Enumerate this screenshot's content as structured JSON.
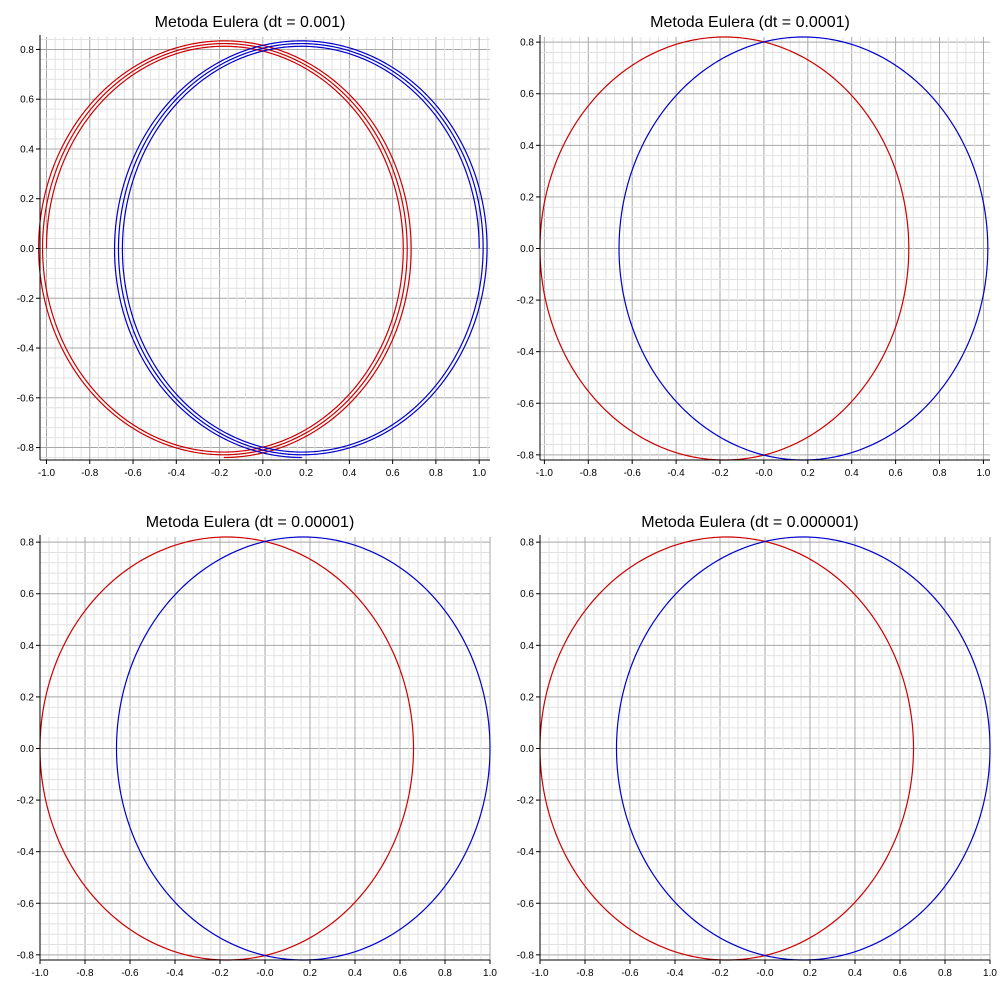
{
  "colors": {
    "series_a": "#cc0000",
    "series_b": "#0000cc",
    "grid_major": "#a8a8a8",
    "grid_minor": "#e2e2e2",
    "axis": "#000000"
  },
  "chart_data": [
    {
      "type": "line",
      "title": "Metoda Eulera (dt = 0.001)",
      "xlabel": "",
      "ylabel": "",
      "xlim": [
        -1.03,
        1.05
      ],
      "ylim": [
        -0.85,
        0.85
      ],
      "xticks": [
        "-1.0",
        "-0.8",
        "-0.6",
        "-0.4",
        "-0.2",
        "-0.0",
        "0.2",
        "0.4",
        "0.6",
        "0.8",
        "1.0"
      ],
      "yticks": [
        "-0.8",
        "-0.6",
        "-0.4",
        "-0.2",
        "0.0",
        "0.2",
        "0.4",
        "0.6",
        "0.8"
      ],
      "grid": true,
      "series": [
        {
          "color": "#cc0000",
          "shape": "spiral",
          "cx": -0.18,
          "rx_start": 0.82,
          "rx_end": 0.87,
          "ry_start": 0.81,
          "ry_end": 0.84,
          "turns": 2.75
        },
        {
          "color": "#0000cc",
          "shape": "spiral",
          "cx": 0.18,
          "rx_start": 0.82,
          "rx_end": 0.87,
          "ry_start": 0.81,
          "ry_end": 0.84,
          "turns": 2.75
        }
      ]
    },
    {
      "type": "line",
      "title": "Metoda Eulera (dt = 0.0001)",
      "xlabel": "",
      "ylabel": "",
      "xlim": [
        -1.02,
        1.03
      ],
      "ylim": [
        -0.82,
        0.82
      ],
      "xticks": [
        "-1.0",
        "-0.8",
        "-0.6",
        "-0.4",
        "-0.2",
        "-0.0",
        "0.2",
        "0.4",
        "0.6",
        "0.8",
        "1.0"
      ],
      "yticks": [
        "-0.8",
        "-0.6",
        "-0.4",
        "-0.2",
        "0.0",
        "0.2",
        "0.4",
        "0.6",
        "0.8"
      ],
      "grid": true,
      "series": [
        {
          "color": "#cc0000",
          "shape": "ellipse",
          "cx": -0.18,
          "rx": 0.84,
          "ry": 0.82
        },
        {
          "color": "#0000cc",
          "shape": "ellipse",
          "cx": 0.18,
          "rx": 0.84,
          "ry": 0.82
        }
      ]
    },
    {
      "type": "line",
      "title": "Metoda Eulera (dt = 0.00001)",
      "xlabel": "",
      "ylabel": "",
      "xlim": [
        -1.0,
        1.0
      ],
      "ylim": [
        -0.82,
        0.82
      ],
      "xticks": [
        "-1.0",
        "-0.8",
        "-0.6",
        "-0.4",
        "-0.2",
        "-0.0",
        "0.2",
        "0.4",
        "0.6",
        "0.8",
        "1.0"
      ],
      "yticks": [
        "-0.8",
        "-0.6",
        "-0.4",
        "-0.2",
        "0.0",
        "0.2",
        "0.4",
        "0.6",
        "0.8"
      ],
      "grid": true,
      "series": [
        {
          "color": "#cc0000",
          "shape": "ellipse",
          "cx": -0.17,
          "rx": 0.83,
          "ry": 0.82
        },
        {
          "color": "#0000cc",
          "shape": "ellipse",
          "cx": 0.17,
          "rx": 0.83,
          "ry": 0.82
        }
      ]
    },
    {
      "type": "line",
      "title": "Metoda Eulera (dt = 0.000001)",
      "xlabel": "",
      "ylabel": "",
      "xlim": [
        -1.0,
        1.0
      ],
      "ylim": [
        -0.82,
        0.82
      ],
      "xticks": [
        "-1.0",
        "-0.8",
        "-0.6",
        "-0.4",
        "-0.2",
        "-0.0",
        "0.2",
        "0.4",
        "0.6",
        "0.8",
        "1.0"
      ],
      "yticks": [
        "-0.8",
        "-0.6",
        "-0.4",
        "-0.2",
        "0.0",
        "0.2",
        "0.4",
        "0.6",
        "0.8"
      ],
      "grid": true,
      "series": [
        {
          "color": "#cc0000",
          "shape": "ellipse",
          "cx": -0.17,
          "rx": 0.83,
          "ry": 0.82
        },
        {
          "color": "#0000cc",
          "shape": "ellipse",
          "cx": 0.17,
          "rx": 0.83,
          "ry": 0.82
        }
      ]
    }
  ]
}
